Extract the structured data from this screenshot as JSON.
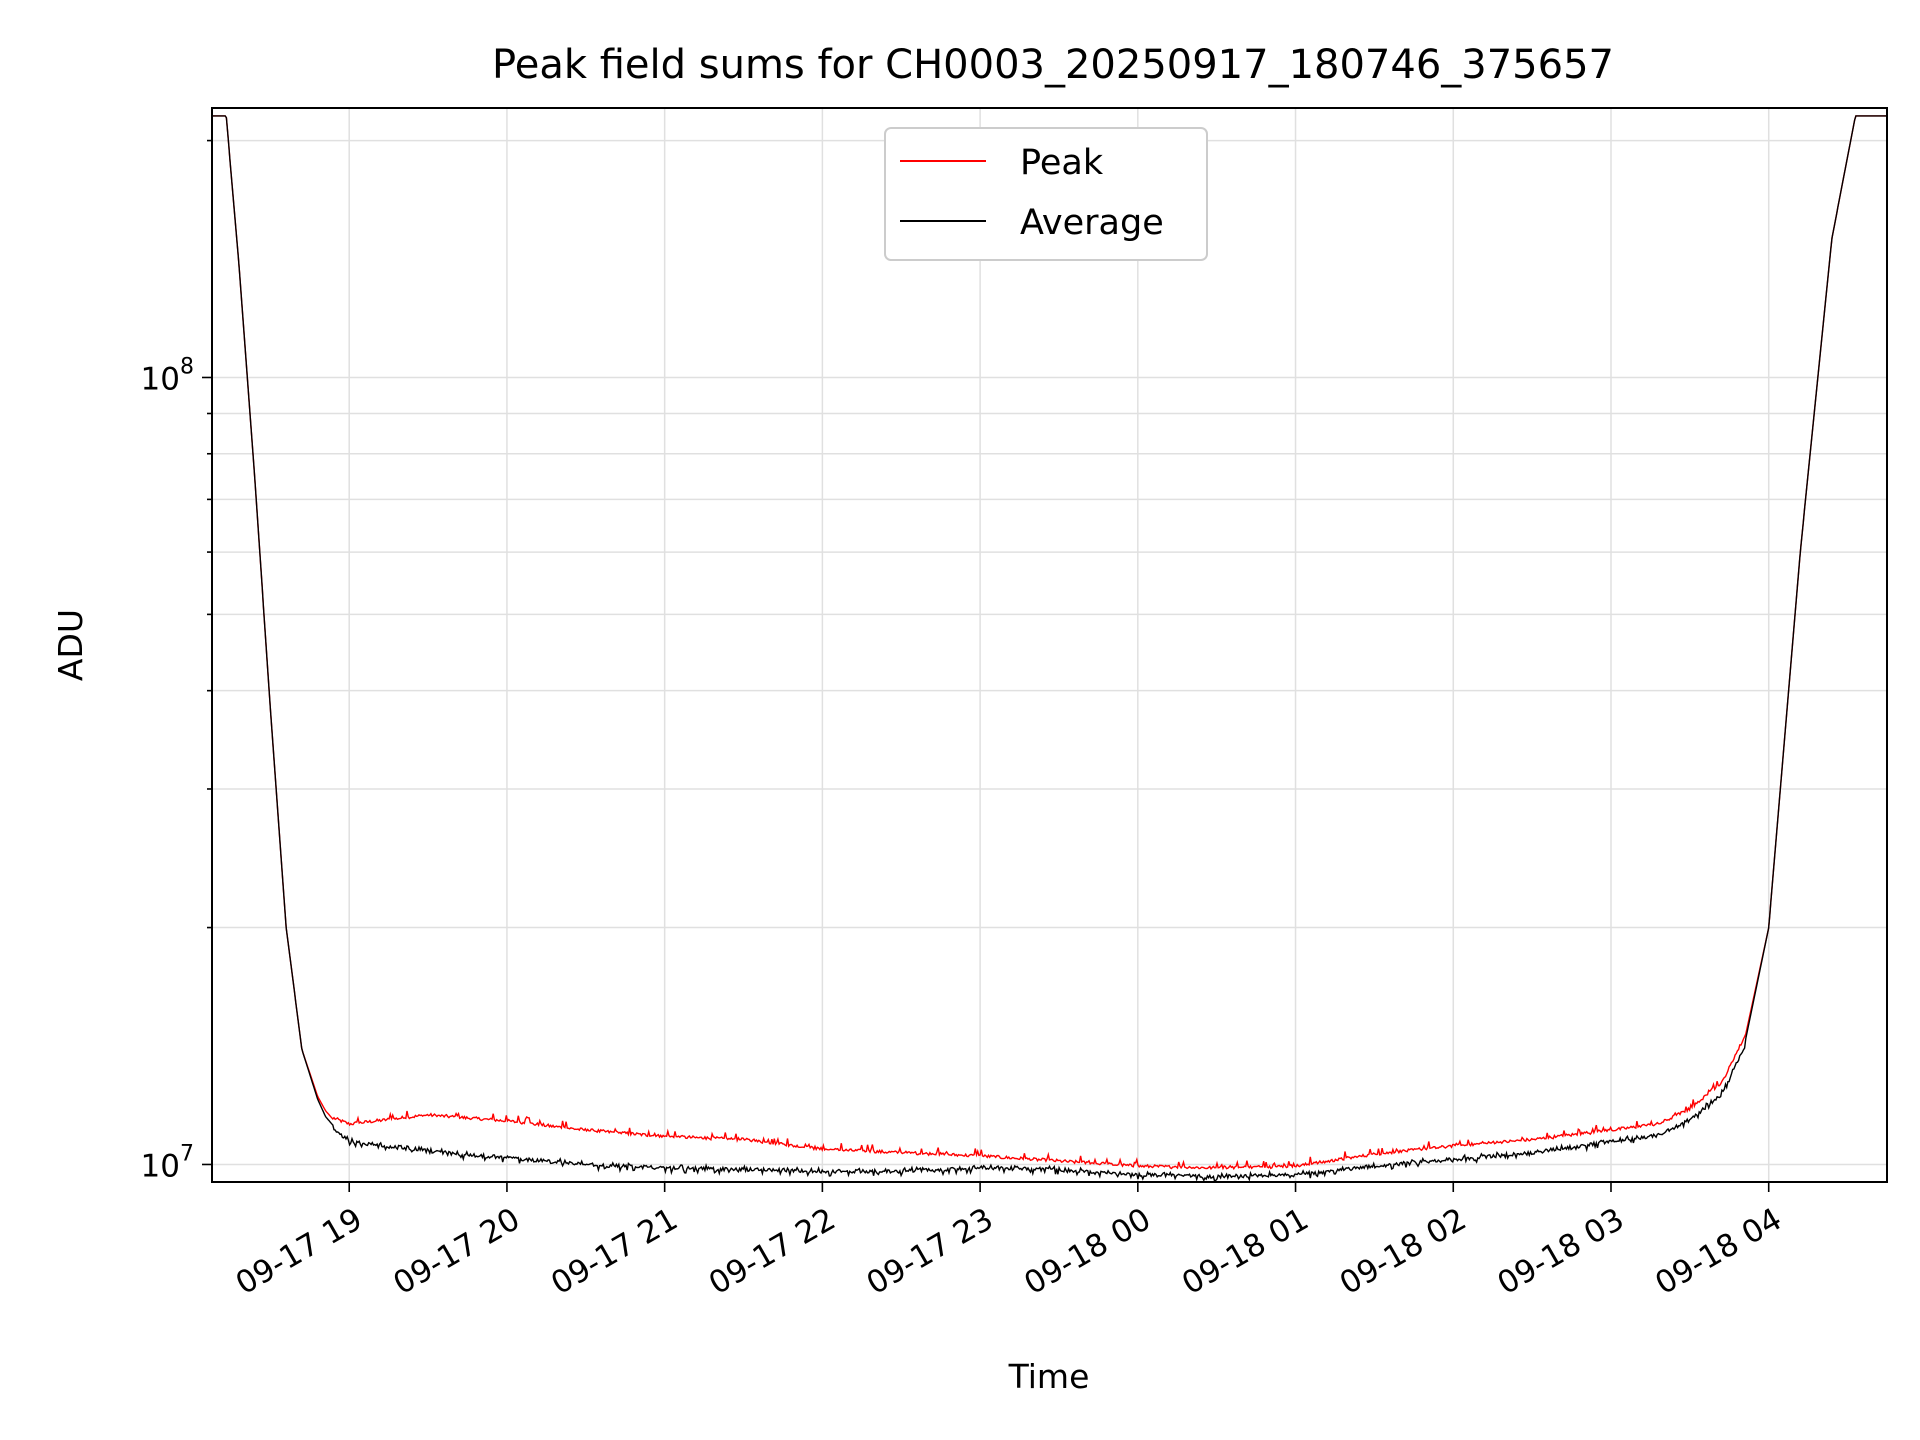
{
  "chart_data": {
    "type": "line",
    "title": "Peak field sums for CH0003_20250917_180746_375657",
    "xlabel": "Time",
    "ylabel": "ADU",
    "yscale": "log",
    "ylim": [
      9500000,
      220000000
    ],
    "xlim_hours": [
      18.13,
      28.75
    ],
    "x_ticks": [
      {
        "label": "09-17 19",
        "hour": 19
      },
      {
        "label": "09-17 20",
        "hour": 20
      },
      {
        "label": "09-17 21",
        "hour": 21
      },
      {
        "label": "09-17 22",
        "hour": 22
      },
      {
        "label": "09-17 23",
        "hour": 23
      },
      {
        "label": "09-18 00",
        "hour": 24
      },
      {
        "label": "09-18 01",
        "hour": 25
      },
      {
        "label": "09-18 02",
        "hour": 26
      },
      {
        "label": "09-18 03",
        "hour": 27
      },
      {
        "label": "09-18 04",
        "hour": 28
      }
    ],
    "y_ticks": [
      {
        "base": "10",
        "exp": "7",
        "value": 10000000
      },
      {
        "base": "10",
        "exp": "8",
        "value": 100000000
      }
    ],
    "grid": true,
    "legend_position": "upper-center",
    "series": [
      {
        "name": "Peak",
        "color": "#ff0000",
        "x_hours": [
          18.13,
          18.22,
          18.3,
          18.4,
          18.5,
          18.6,
          18.7,
          18.8,
          18.85,
          18.9,
          19.0,
          19.5,
          20.0,
          20.5,
          21.0,
          21.5,
          22.0,
          22.5,
          23.0,
          23.5,
          24.0,
          24.5,
          25.0,
          25.5,
          26.0,
          26.5,
          27.0,
          27.3,
          27.5,
          27.7,
          27.85,
          28.0,
          28.2,
          28.4,
          28.55,
          28.75
        ],
        "values": [
          215000000,
          215000000,
          140000000,
          75000000,
          38000000,
          20000000,
          14000000,
          12200000,
          11700000,
          11400000,
          11200000,
          11500000,
          11300000,
          11000000,
          10800000,
          10700000,
          10400000,
          10300000,
          10200000,
          10050000,
          9900000,
          9850000,
          9900000,
          10250000,
          10500000,
          10700000,
          11000000,
          11200000,
          11700000,
          12600000,
          14500000,
          20000000,
          60000000,
          150000000,
          215000000,
          215000000
        ]
      },
      {
        "name": "Average",
        "color": "#000000",
        "x_hours": [
          18.13,
          18.22,
          18.3,
          18.4,
          18.5,
          18.6,
          18.7,
          18.8,
          18.85,
          18.9,
          19.0,
          19.5,
          20.0,
          20.5,
          21.0,
          21.5,
          22.0,
          22.5,
          23.0,
          23.5,
          24.0,
          24.5,
          25.0,
          25.5,
          26.0,
          26.5,
          27.0,
          27.3,
          27.5,
          27.7,
          27.85,
          28.0,
          28.2,
          28.4,
          28.55,
          28.75
        ],
        "values": [
          215000000,
          215000000,
          140000000,
          75000000,
          38000000,
          20000000,
          14000000,
          12100000,
          11500000,
          11200000,
          10800000,
          10500000,
          10300000,
          10100000,
          10000000,
          9950000,
          9900000,
          9900000,
          10000000,
          9950000,
          9800000,
          9750000,
          9800000,
          10050000,
          10250000,
          10450000,
          10800000,
          11000000,
          11500000,
          12400000,
          14300000,
          20000000,
          60000000,
          150000000,
          215000000,
          215000000
        ]
      }
    ]
  }
}
